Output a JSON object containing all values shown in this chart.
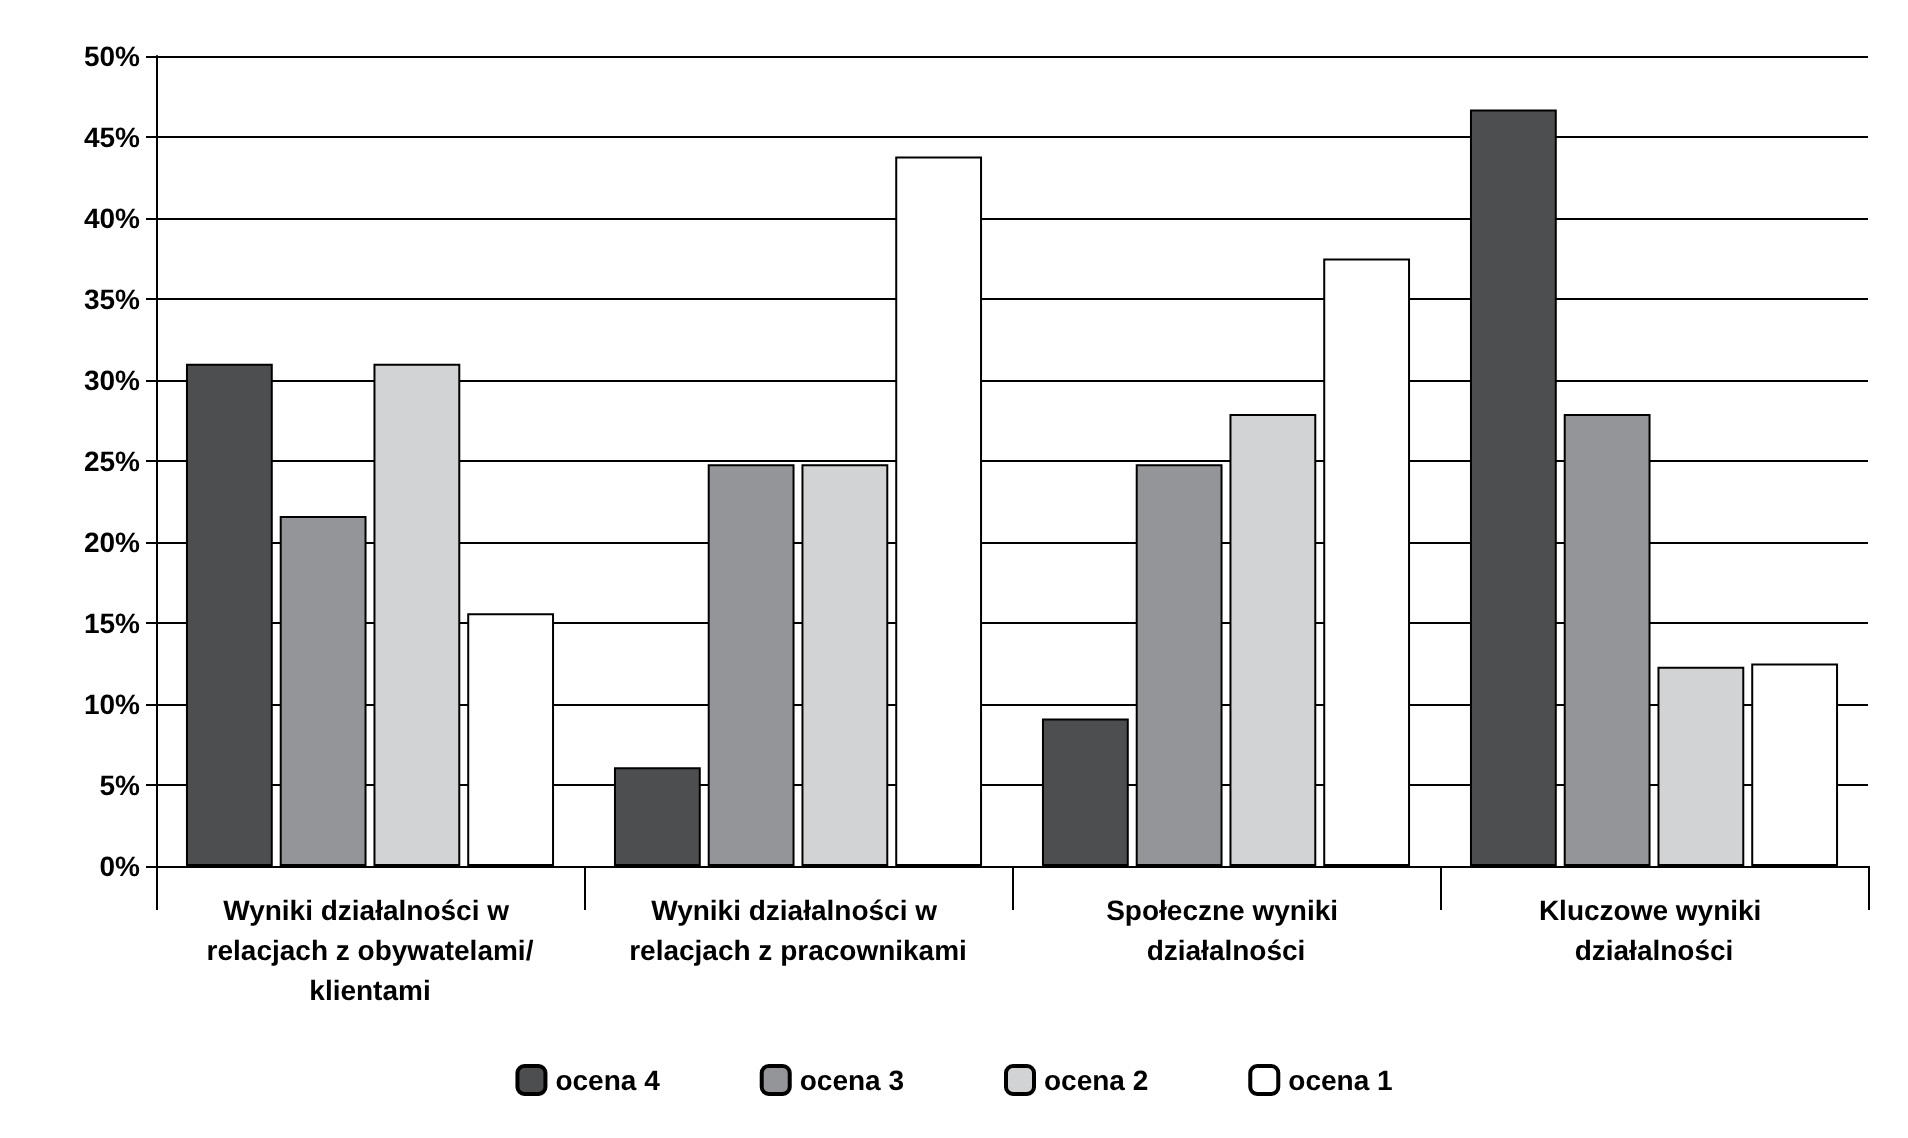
{
  "chart_data": {
    "type": "bar",
    "categories": [
      "Wyniki działalności w relacjach z obywatelami/klientami",
      "Wyniki działalności w relacjach z pracownikami",
      "Społeczne wyniki działalności",
      "Kluczowe wyniki działalności"
    ],
    "series": [
      {
        "name": "ocena 4",
        "color": "#4d4e50",
        "values": [
          31.0,
          6.1,
          9.1,
          46.7
        ]
      },
      {
        "name": "ocena 3",
        "color": "#939598",
        "values": [
          21.6,
          24.8,
          24.8,
          27.9
        ]
      },
      {
        "name": "ocena 2",
        "color": "#d1d3d4",
        "values": [
          31.0,
          24.8,
          27.9,
          12.3
        ]
      },
      {
        "name": "ocena 1",
        "color": "#ffffff",
        "values": [
          15.6,
          43.8,
          37.5,
          12.5
        ]
      }
    ],
    "ylim": [
      0,
      50
    ],
    "yticks": [
      {
        "value": 0,
        "label": "0%"
      },
      {
        "value": 5,
        "label": "5%"
      },
      {
        "value": 10,
        "label": "10%"
      },
      {
        "value": 15,
        "label": "15%"
      },
      {
        "value": 20,
        "label": "20%"
      },
      {
        "value": 25,
        "label": "25%"
      },
      {
        "value": 30,
        "label": "30%"
      },
      {
        "value": 35,
        "label": "35%"
      },
      {
        "value": 40,
        "label": "40%"
      },
      {
        "value": 45,
        "label": "45%"
      },
      {
        "value": 50,
        "label": "50%"
      }
    ],
    "grid": "y",
    "legend": "bottom"
  }
}
